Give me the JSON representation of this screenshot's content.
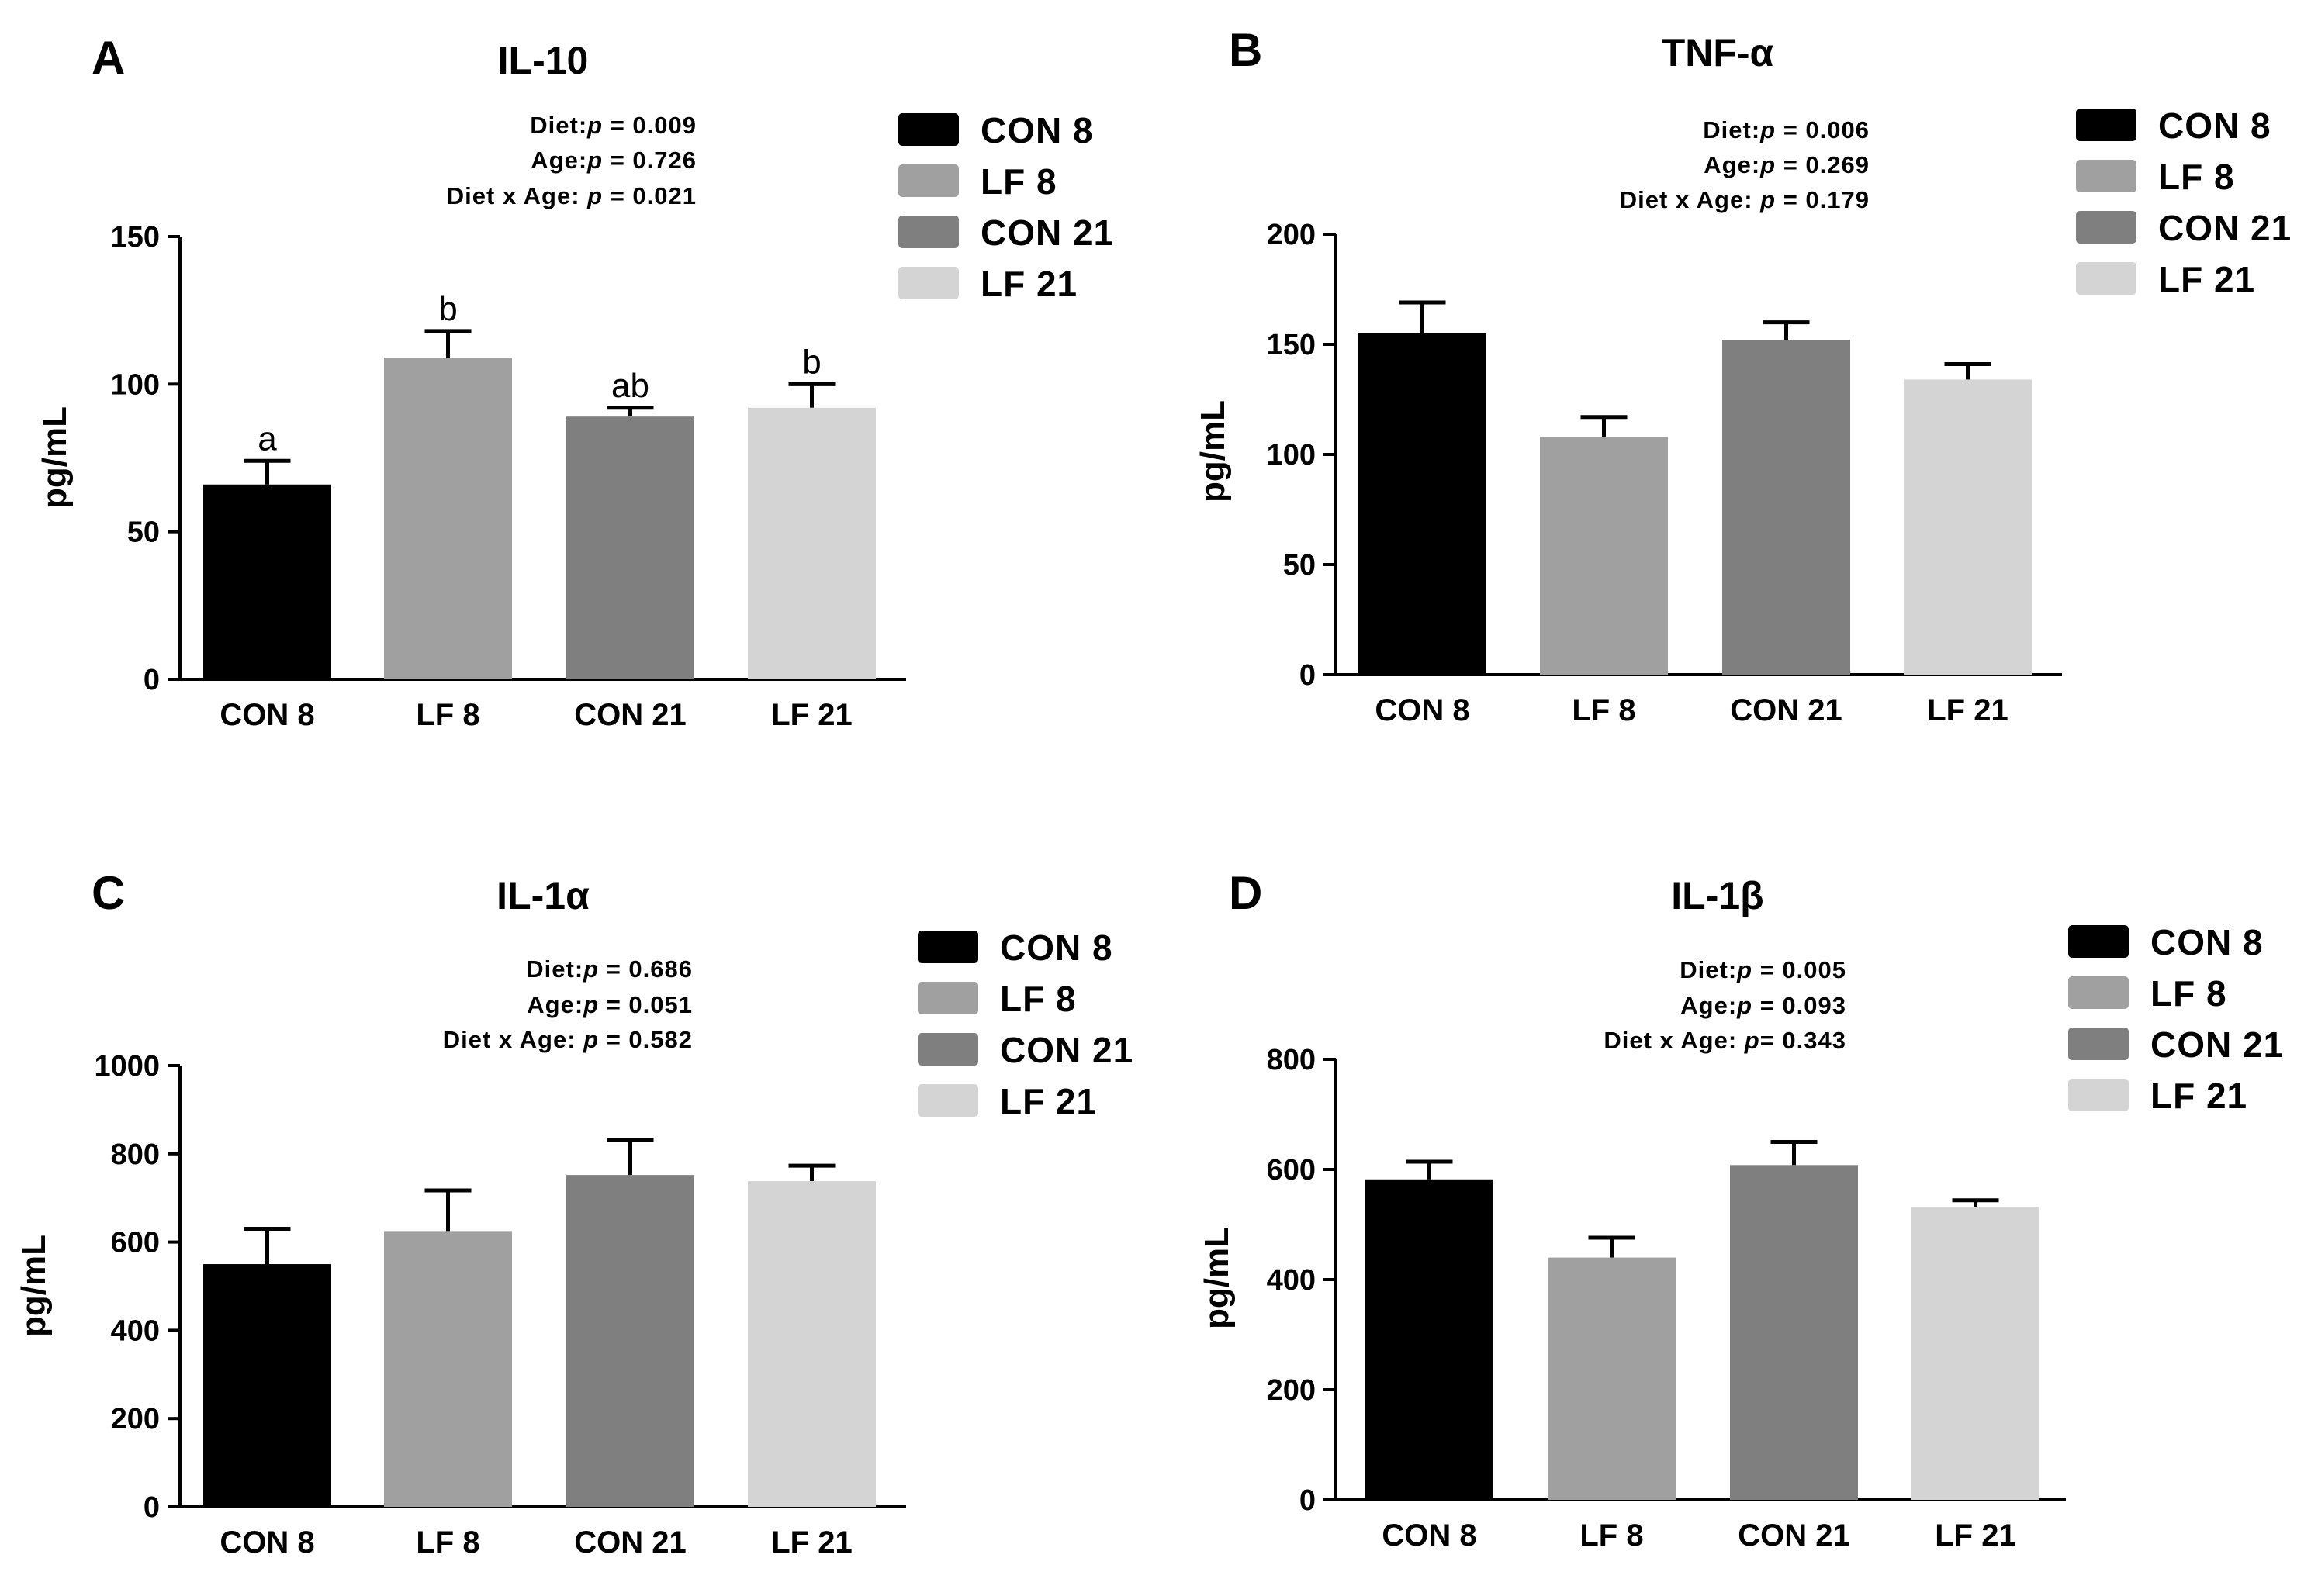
{
  "chart_data": [
    {
      "type": "bar",
      "panel": "A",
      "title": "IL-10",
      "xlabel": "",
      "ylabel": "pg/mL",
      "ylim": [
        0,
        150
      ],
      "yticks": [
        0,
        50,
        100,
        150
      ],
      "categories": [
        "CON 8",
        "LF 8",
        "CON 21",
        "LF 21"
      ],
      "values": [
        66,
        109,
        89,
        92
      ],
      "errors": [
        8,
        9,
        3,
        8
      ],
      "colors": [
        "#000000",
        "#a0a0a0",
        "#7f7f7f",
        "#d4d4d4"
      ],
      "significance_letters": [
        "a",
        "b",
        "ab",
        "b"
      ],
      "stats": [
        "Diet:p = 0.009",
        "Age:p = 0.726",
        "Diet x Age: p = 0.021"
      ],
      "legend": [
        "CON 8",
        "LF 8",
        "CON 21",
        "LF 21"
      ],
      "legend_position": "top-right"
    },
    {
      "type": "bar",
      "panel": "B",
      "title": "TNF-α",
      "xlabel": "",
      "ylabel": "pg/mL",
      "ylim": [
        0,
        200
      ],
      "yticks": [
        0,
        50,
        100,
        150,
        200
      ],
      "categories": [
        "CON 8",
        "LF 8",
        "CON 21",
        "LF 21"
      ],
      "values": [
        155,
        108,
        152,
        134
      ],
      "errors": [
        14,
        9,
        8,
        7
      ],
      "colors": [
        "#000000",
        "#a0a0a0",
        "#7f7f7f",
        "#d4d4d4"
      ],
      "significance_letters": [],
      "stats": [
        "Diet:p = 0.006",
        "Age:p = 0.269",
        "Diet x Age: p = 0.179"
      ],
      "legend": [
        "CON 8",
        "LF 8",
        "CON 21",
        "LF 21"
      ],
      "legend_position": "top-right"
    },
    {
      "type": "bar",
      "panel": "C",
      "title": "IL-1α",
      "xlabel": "",
      "ylabel": "pg/mL",
      "ylim": [
        0,
        1000
      ],
      "yticks": [
        0,
        200,
        400,
        600,
        800,
        1000
      ],
      "categories": [
        "CON 8",
        "LF 8",
        "CON 21",
        "LF 21"
      ],
      "values": [
        550,
        625,
        752,
        738
      ],
      "errors": [
        80,
        92,
        80,
        35
      ],
      "colors": [
        "#000000",
        "#a0a0a0",
        "#7f7f7f",
        "#d4d4d4"
      ],
      "significance_letters": [],
      "stats": [
        "Diet:p = 0.686",
        "Age:p = 0.051",
        "Diet x Age: p = 0.582"
      ],
      "legend": [
        "CON 8",
        "LF 8",
        "CON 21",
        "LF 21"
      ],
      "legend_position": "top-right"
    },
    {
      "type": "bar",
      "panel": "D",
      "title": "IL-1β",
      "xlabel": "",
      "ylabel": "pg/mL",
      "ylim": [
        0,
        800
      ],
      "yticks": [
        0,
        200,
        400,
        600,
        800
      ],
      "categories": [
        "CON 8",
        "LF 8",
        "CON 21",
        "LF 21"
      ],
      "values": [
        582,
        440,
        608,
        532
      ],
      "errors": [
        32,
        36,
        42,
        12
      ],
      "colors": [
        "#000000",
        "#a0a0a0",
        "#7f7f7f",
        "#d4d4d4"
      ],
      "significance_letters": [],
      "stats": [
        "Diet:p = 0.005",
        "Age:p = 0.093",
        "Diet x Age: p= 0.343"
      ],
      "legend": [
        "CON 8",
        "LF 8",
        "CON 21",
        "LF 21"
      ],
      "legend_position": "top-right"
    }
  ]
}
